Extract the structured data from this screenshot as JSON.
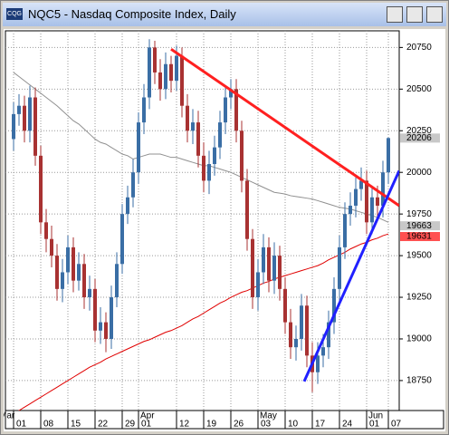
{
  "chart_data": {
    "type": "candlestick",
    "title": "NQC5 - Nasdaq Composite Index, Daily",
    "categories": [
      "01",
      null,
      null,
      null,
      null,
      "08",
      null,
      null,
      null,
      null,
      "15",
      null,
      null,
      null,
      null,
      "22",
      null,
      null,
      null,
      null,
      "29",
      null,
      null,
      "01",
      null,
      null,
      null,
      null,
      null,
      null,
      "12",
      null,
      null,
      null,
      null,
      "19",
      null,
      null,
      null,
      null,
      "26",
      null,
      null,
      null,
      null,
      "03",
      null,
      null,
      null,
      null,
      "10",
      null,
      null,
      null,
      null,
      "17",
      null,
      null,
      null,
      null,
      "24",
      null,
      null,
      null,
      null,
      "01",
      null,
      null,
      null,
      "07"
    ],
    "months": [
      "Mar",
      "Apr",
      "May",
      "Jun"
    ],
    "open": [
      20200,
      20350,
      20400,
      20250,
      20450,
      20100,
      19700,
      19600,
      19500,
      19300,
      19400,
      19550,
      19350,
      19450,
      19250,
      19300,
      19050,
      19100,
      19000,
      19250,
      19450,
      19750,
      19850,
      20000,
      20300,
      20450,
      20750,
      20600,
      20500,
      20650,
      20550,
      20700,
      20400,
      20250,
      20300,
      20100,
      19950,
      20050,
      20150,
      20300,
      20450,
      20500,
      20250,
      19950,
      19600,
      19250,
      19400,
      19550,
      19350,
      19500,
      19300,
      19100,
      18950,
      19000,
      19200,
      18900,
      18800,
      18900,
      18950,
      19100,
      19300,
      19550,
      19750,
      19800,
      19900,
      19950,
      19700,
      19850,
      19800,
      20000
    ],
    "high": [
      20420,
      20470,
      20460,
      20520,
      20510,
      20160,
      19780,
      19680,
      19570,
      19480,
      19620,
      19610,
      19520,
      19510,
      19380,
      19360,
      19190,
      19160,
      19320,
      19520,
      19810,
      19920,
      20080,
      20360,
      20530,
      20800,
      20790,
      20680,
      20720,
      20700,
      20760,
      20750,
      20470,
      20380,
      20370,
      20180,
      20130,
      20220,
      20370,
      20520,
      20560,
      20560,
      20310,
      20020,
      19660,
      19480,
      19630,
      19610,
      19580,
      19560,
      19370,
      19180,
      19080,
      19270,
      19260,
      18980,
      18980,
      19030,
      19170,
      19370,
      19620,
      19820,
      19880,
      19970,
      20030,
      20010,
      19920,
      19920,
      20070,
      20210
    ],
    "low": [
      20130,
      20280,
      20180,
      20180,
      20040,
      19630,
      19520,
      19430,
      19230,
      19220,
      19330,
      19280,
      19290,
      19180,
      19170,
      18980,
      18970,
      18920,
      18940,
      19190,
      19390,
      19690,
      19790,
      19930,
      20230,
      20380,
      20530,
      20430,
      20440,
      20480,
      20490,
      20330,
      20180,
      20170,
      20030,
      19880,
      19870,
      19980,
      20080,
      20230,
      20380,
      20180,
      19880,
      19530,
      19180,
      19170,
      19330,
      19280,
      19270,
      19230,
      19030,
      18880,
      18870,
      18930,
      18830,
      18680,
      18730,
      18830,
      18880,
      19030,
      19230,
      19480,
      19680,
      19730,
      19830,
      19630,
      19630,
      19730,
      19730,
      19930
    ],
    "close": [
      20350,
      20400,
      20250,
      20450,
      20100,
      19700,
      19600,
      19500,
      19300,
      19400,
      19550,
      19350,
      19450,
      19250,
      19300,
      19050,
      19100,
      19000,
      19250,
      19450,
      19750,
      19850,
      20000,
      20300,
      20450,
      20750,
      20600,
      20500,
      20650,
      20550,
      20700,
      20400,
      20250,
      20300,
      20100,
      19950,
      20050,
      20150,
      20300,
      20450,
      20500,
      20250,
      19950,
      19600,
      19250,
      19400,
      19550,
      19350,
      19500,
      19300,
      19100,
      18950,
      19000,
      19200,
      18900,
      18800,
      18900,
      18950,
      19100,
      19300,
      19550,
      19750,
      19800,
      19900,
      19950,
      19700,
      19850,
      19800,
      20000,
      20206
    ],
    "up_color": "#3a6ea5",
    "down_color": "#a83232",
    "moving_averages": [
      {
        "color": "#909090",
        "values": [
          20600,
          20575,
          20550,
          20525,
          20500,
          20475,
          20450,
          20425,
          20400,
          20370,
          20340,
          20310,
          20290,
          20260,
          20230,
          20200,
          20180,
          20170,
          20150,
          20130,
          20110,
          20100,
          20080,
          20090,
          20100,
          20110,
          20110,
          20110,
          20100,
          20090,
          20090,
          20080,
          20070,
          20060,
          20050,
          20040,
          20040,
          20030,
          20020,
          20010,
          20000,
          19985,
          19970,
          19955,
          19940,
          19925,
          19910,
          19895,
          19880,
          19875,
          19870,
          19860,
          19855,
          19850,
          19845,
          19840,
          19830,
          19820,
          19810,
          19800,
          19790,
          19785,
          19780,
          19770,
          19760,
          19750,
          19740,
          19730,
          19715,
          19700
        ]
      },
      {
        "color": "#e00000",
        "values": [
          18550,
          18570,
          18590,
          18610,
          18630,
          18650,
          18670,
          18690,
          18710,
          18730,
          18750,
          18770,
          18790,
          18810,
          18830,
          18845,
          18860,
          18880,
          18895,
          18910,
          18925,
          18940,
          18955,
          18970,
          18985,
          18995,
          19010,
          19025,
          19040,
          19050,
          19065,
          19080,
          19100,
          19120,
          19135,
          19155,
          19175,
          19195,
          19215,
          19230,
          19250,
          19265,
          19280,
          19290,
          19305,
          19320,
          19335,
          19345,
          19360,
          19370,
          19380,
          19390,
          19400,
          19410,
          19420,
          19430,
          19440,
          19455,
          19475,
          19490,
          19505,
          19520,
          19540,
          19555,
          19570,
          19580,
          19595,
          19605,
          19620,
          19630
        ]
      }
    ],
    "trendlines": [
      {
        "color": "#ff2020",
        "from": [
          29,
          20740
        ],
        "to": [
          71,
          19800
        ]
      },
      {
        "color": "#2020ff",
        "from": [
          53.5,
          18745
        ],
        "to": [
          71,
          20010
        ]
      }
    ],
    "price_labels": [
      {
        "value": 20206,
        "color": "#c8c8c8"
      },
      {
        "value": 19663,
        "color": "#c8c8c8"
      },
      {
        "value": 19631,
        "color": "#ff5050"
      }
    ],
    "ylim": [
      18570,
      20850
    ],
    "yticks": [
      18750,
      19000,
      19250,
      19500,
      19750,
      20000,
      20250,
      20500,
      20750
    ],
    "grid": true
  }
}
